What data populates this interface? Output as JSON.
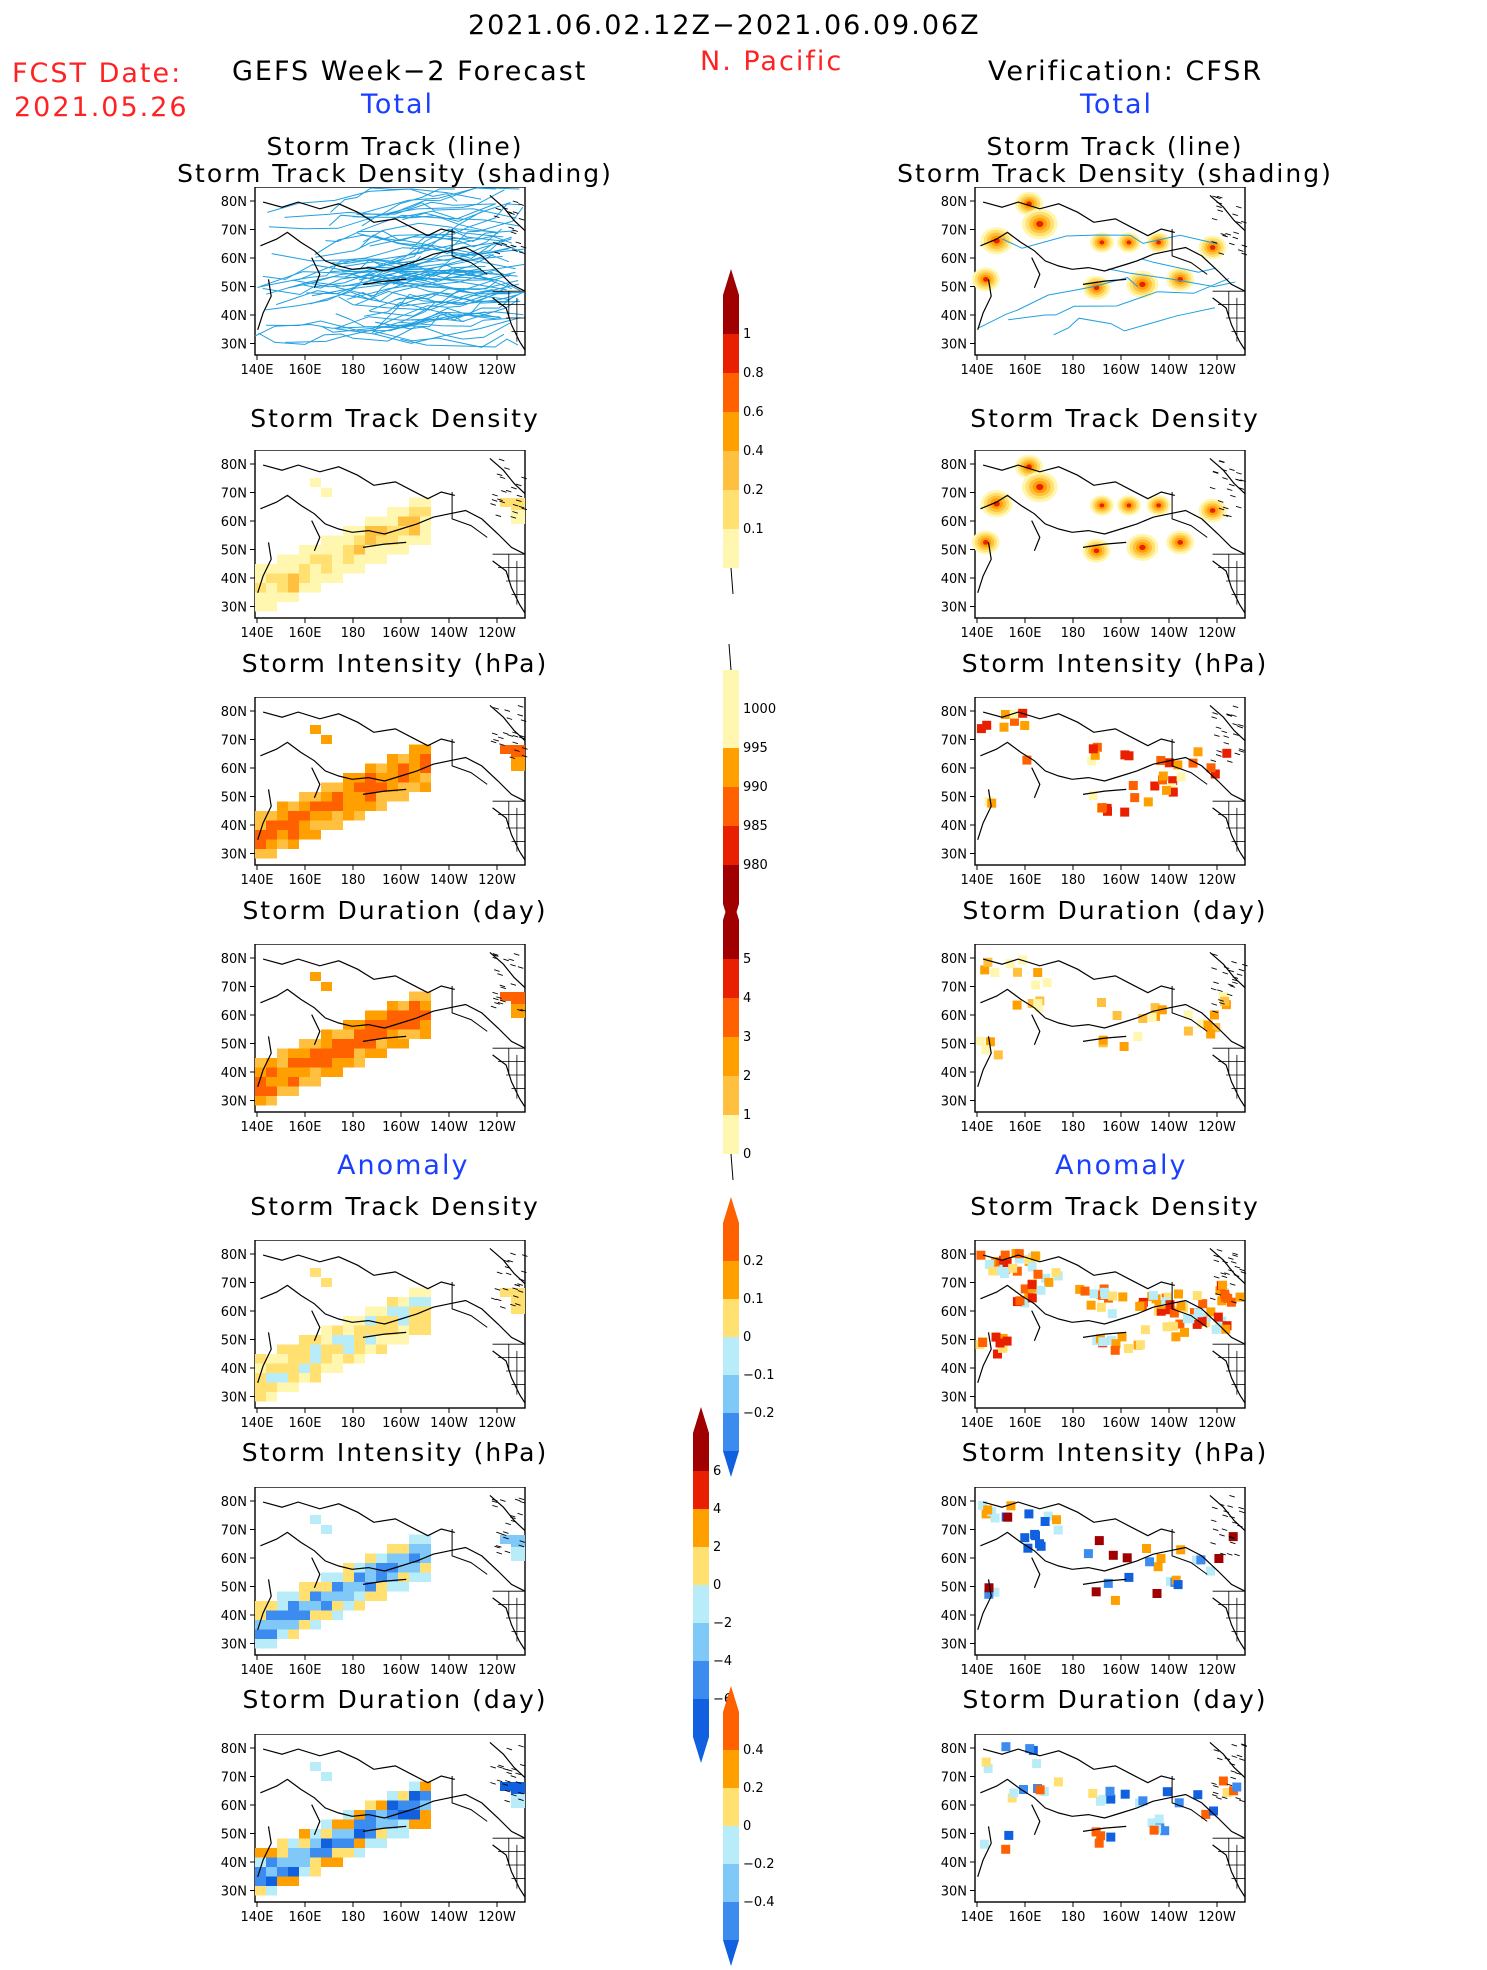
{
  "header": {
    "period": "2021.06.02.12Z−2021.06.09.06Z",
    "region": "N. Pacific",
    "fcst_label": "FCST Date:",
    "fcst_date": "2021.05.26",
    "left_title": "GEFS Week−2 Forecast",
    "right_title": "Verification: CFSR",
    "total_label": "Total",
    "anomaly_label": "Anomaly"
  },
  "panel_titles": {
    "track_line": "Storm Track (line)",
    "track_density_shading": "Storm Track Density (shading)",
    "track_density": "Storm Track Density",
    "intensity": "Storm Intensity (hPa)",
    "duration": "Storm Duration (day)"
  },
  "axes": {
    "lat_ticks": [
      "80N",
      "70N",
      "60N",
      "50N",
      "40N",
      "30N"
    ],
    "lon_ticks": [
      "140E",
      "160E",
      "180",
      "160W",
      "140W",
      "120W"
    ]
  },
  "colors": {
    "c_lightyellow": "#fff7b0",
    "c_yellow": "#ffe070",
    "c_lightorange": "#ffc040",
    "c_orange": "#ffa000",
    "c_darkorange": "#ff6000",
    "c_red": "#e82000",
    "c_darkred": "#a00000",
    "c_lightcyan": "#b8ecf8",
    "c_lightblue": "#80c8f8",
    "c_blue": "#3c8cf0",
    "c_darkblue": "#1060e0",
    "track_line": "#20a0e0"
  },
  "colorbars": {
    "density": {
      "labels": [
        "1",
        "0.8",
        "0.6",
        "0.4",
        "0.2",
        "0.1"
      ]
    },
    "intensity": {
      "labels": [
        "1000",
        "995",
        "990",
        "985",
        "980"
      ]
    },
    "duration": {
      "labels": [
        "5",
        "4",
        "3",
        "2",
        "1",
        "0"
      ]
    },
    "density_anom": {
      "labels": [
        "0.2",
        "0.1",
        "0",
        "−0.1",
        "−0.2"
      ]
    },
    "intensity_anom": {
      "labels": [
        "6",
        "4",
        "2",
        "0",
        "−2",
        "−4",
        "−6"
      ]
    },
    "duration_anom": {
      "labels": [
        "0.4",
        "0.2",
        "0",
        "−0.2",
        "−0.4"
      ]
    }
  },
  "chart_data": [
    {
      "type": "heatmap",
      "panel": "GEFS total storm track + density",
      "title": "Storm Track (line) / Storm Track Density (shading)",
      "xlim": [
        "140E",
        "115W"
      ],
      "ylim": [
        25,
        85
      ]
    },
    {
      "type": "heatmap",
      "panel": "CFSR total storm track + density",
      "title": "Storm Track (line) / Storm Track Density (shading)",
      "xlim": [
        "140E",
        "115W"
      ],
      "ylim": [
        25,
        85
      ]
    },
    {
      "type": "heatmap",
      "panel": "GEFS total storm track density",
      "title": "Storm Track Density",
      "scale": [
        0.1,
        0.2,
        0.4,
        0.6,
        0.8,
        1
      ]
    },
    {
      "type": "heatmap",
      "panel": "CFSR total storm track density",
      "title": "Storm Track Density",
      "scale": [
        0.1,
        0.2,
        0.4,
        0.6,
        0.8,
        1
      ]
    },
    {
      "type": "heatmap",
      "panel": "GEFS total storm intensity",
      "title": "Storm Intensity (hPa)",
      "scale": [
        980,
        985,
        990,
        995,
        1000
      ]
    },
    {
      "type": "heatmap",
      "panel": "CFSR total storm intensity",
      "title": "Storm Intensity (hPa)",
      "scale": [
        980,
        985,
        990,
        995,
        1000
      ]
    },
    {
      "type": "heatmap",
      "panel": "GEFS total storm duration",
      "title": "Storm Duration (day)",
      "scale": [
        0,
        1,
        2,
        3,
        4,
        5
      ]
    },
    {
      "type": "heatmap",
      "panel": "CFSR total storm duration",
      "title": "Storm Duration (day)",
      "scale": [
        0,
        1,
        2,
        3,
        4,
        5
      ]
    },
    {
      "type": "heatmap",
      "panel": "GEFS anomaly storm track density",
      "title": "Storm Track Density",
      "scale": [
        -0.2,
        -0.1,
        0,
        0.1,
        0.2
      ]
    },
    {
      "type": "heatmap",
      "panel": "CFSR anomaly storm track density",
      "title": "Storm Track Density",
      "scale": [
        -0.2,
        -0.1,
        0,
        0.1,
        0.2
      ]
    },
    {
      "type": "heatmap",
      "panel": "GEFS anomaly storm intensity",
      "title": "Storm Intensity (hPa)",
      "scale": [
        -6,
        -4,
        -2,
        0,
        2,
        4,
        6
      ]
    },
    {
      "type": "heatmap",
      "panel": "CFSR anomaly storm intensity",
      "title": "Storm Intensity (hPa)",
      "scale": [
        -6,
        -4,
        -2,
        0,
        2,
        4,
        6
      ]
    },
    {
      "type": "heatmap",
      "panel": "GEFS anomaly storm duration",
      "title": "Storm Duration (day)",
      "scale": [
        -0.4,
        -0.2,
        0,
        0.2,
        0.4
      ]
    },
    {
      "type": "heatmap",
      "panel": "CFSR anomaly storm duration",
      "title": "Storm Duration (day)",
      "scale": [
        -0.4,
        -0.2,
        0,
        0.2,
        0.4
      ]
    }
  ]
}
